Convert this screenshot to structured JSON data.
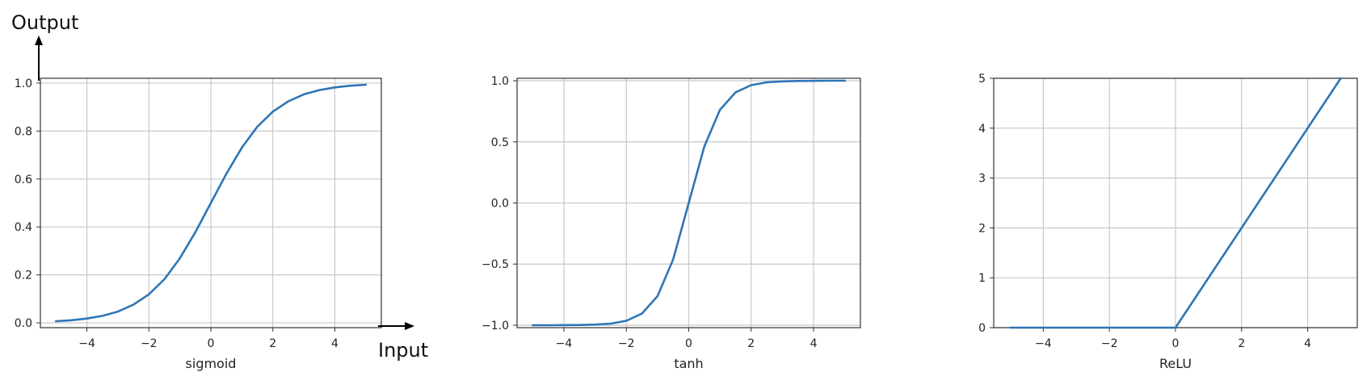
{
  "chart_data": [
    {
      "type": "line",
      "xlabel": "sigmoid",
      "ylabel": "",
      "xlim": [
        -5.5,
        5.5
      ],
      "ylim": [
        -0.02,
        1.02
      ],
      "xticks": [
        -4,
        -2,
        0,
        2,
        4
      ],
      "xtick_labels": [
        "−4",
        "−2",
        "0",
        "2",
        "4"
      ],
      "yticks": [
        0.0,
        0.2,
        0.4,
        0.6,
        0.8,
        1.0
      ],
      "ytick_labels": [
        "0.0",
        "0.2",
        "0.4",
        "0.6",
        "0.8",
        "1.0"
      ],
      "grid": true,
      "series": [
        {
          "color": "#2e75b6",
          "x": [
            -5,
            -4.5,
            -4,
            -3.5,
            -3,
            -2.5,
            -2,
            -1.5,
            -1,
            -0.5,
            0,
            0.5,
            1,
            1.5,
            2,
            2.5,
            3,
            3.5,
            4,
            4.5,
            5
          ],
          "y": [
            0.007,
            0.011,
            0.018,
            0.029,
            0.047,
            0.076,
            0.119,
            0.182,
            0.269,
            0.378,
            0.5,
            0.622,
            0.731,
            0.818,
            0.881,
            0.924,
            0.953,
            0.971,
            0.982,
            0.989,
            0.993
          ]
        }
      ],
      "annotations": {
        "y_axis_label": "Output",
        "x_axis_label": "Input"
      }
    },
    {
      "type": "line",
      "xlabel": "tanh",
      "ylabel": "",
      "xlim": [
        -5.5,
        5.5
      ],
      "ylim": [
        -1.02,
        1.02
      ],
      "xticks": [
        -4,
        -2,
        0,
        2,
        4
      ],
      "xtick_labels": [
        "−4",
        "−2",
        "0",
        "2",
        "4"
      ],
      "yticks": [
        -1.0,
        -0.5,
        0.0,
        0.5,
        1.0
      ],
      "ytick_labels": [
        "−1.0",
        "−0.5",
        "0.0",
        "0.5",
        "1.0"
      ],
      "grid": true,
      "series": [
        {
          "color": "#2e75b6",
          "x": [
            -5,
            -4.5,
            -4,
            -3.5,
            -3,
            -2.5,
            -2,
            -1.5,
            -1,
            -0.5,
            0,
            0.5,
            1,
            1.5,
            2,
            2.5,
            3,
            3.5,
            4,
            4.5,
            5
          ],
          "y": [
            -1.0,
            -1.0,
            -0.999,
            -0.998,
            -0.995,
            -0.987,
            -0.964,
            -0.905,
            -0.762,
            -0.462,
            0.0,
            0.462,
            0.762,
            0.905,
            0.964,
            0.987,
            0.995,
            0.998,
            0.999,
            1.0,
            1.0
          ]
        }
      ]
    },
    {
      "type": "line",
      "xlabel": "ReLU",
      "ylabel": "",
      "xlim": [
        -5.5,
        5.5
      ],
      "ylim": [
        0,
        5
      ],
      "xticks": [
        -4,
        -2,
        0,
        2,
        4
      ],
      "xtick_labels": [
        "−4",
        "−2",
        "0",
        "2",
        "4"
      ],
      "yticks": [
        0,
        1,
        2,
        3,
        4,
        5
      ],
      "ytick_labels": [
        "0",
        "1",
        "2",
        "3",
        "4",
        "5"
      ],
      "grid": true,
      "series": [
        {
          "color": "#2e75b6",
          "x": [
            -5,
            0,
            5
          ],
          "y": [
            0,
            0,
            5
          ]
        }
      ]
    }
  ]
}
